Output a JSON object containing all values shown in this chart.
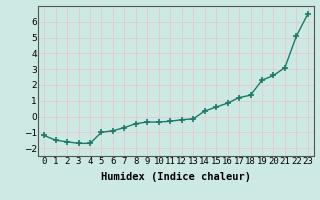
{
  "x": [
    0,
    1,
    2,
    3,
    4,
    5,
    6,
    7,
    8,
    9,
    10,
    11,
    12,
    13,
    14,
    15,
    16,
    17,
    18,
    19,
    20,
    21,
    22,
    23
  ],
  "y": [
    -1.2,
    -1.5,
    -1.6,
    -1.7,
    -1.7,
    -1.0,
    -0.9,
    -0.7,
    -0.45,
    -0.35,
    -0.35,
    -0.3,
    -0.2,
    -0.15,
    0.35,
    0.6,
    0.85,
    1.2,
    1.35,
    2.3,
    2.6,
    3.1,
    5.1,
    6.5
  ],
  "line_color": "#1a7a6a",
  "marker": "+",
  "markersize": 4,
  "linewidth": 1.0,
  "xlabel": "Humidex (Indice chaleur)",
  "xlim": [
    -0.5,
    23.5
  ],
  "ylim": [
    -2.5,
    7.0
  ],
  "yticks": [
    -2,
    -1,
    0,
    1,
    2,
    3,
    4,
    5,
    6
  ],
  "xtick_labels": [
    "0",
    "1",
    "2",
    "3",
    "4",
    "5",
    "6",
    "7",
    "8",
    "9",
    "10",
    "11",
    "12",
    "13",
    "14",
    "15",
    "16",
    "17",
    "18",
    "19",
    "20",
    "21",
    "22",
    "23"
  ],
  "bg_color": "#cce9e3",
  "grid_color": "#e8c8c8",
  "axis_color": "#555555",
  "xlabel_fontsize": 7.5,
  "tick_fontsize": 6.5
}
